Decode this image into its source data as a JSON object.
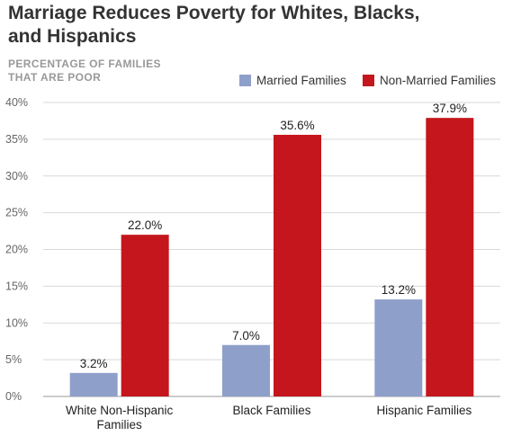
{
  "chart_data": {
    "type": "bar",
    "title_lines": [
      "Marriage Reduces Poverty for Whites, Blacks,",
      "and Hispanics"
    ],
    "ylabel_lines": [
      "PERCENTAGE OF FAMILIES",
      "THAT ARE POOR"
    ],
    "categories": [
      [
        "White Non-Hispanic",
        "Families"
      ],
      [
        "Black Families"
      ],
      [
        "Hispanic Families"
      ]
    ],
    "series": [
      {
        "name": "Married Families",
        "color": "#8e9fca",
        "values": [
          3.2,
          7.0,
          13.2
        ],
        "labels": [
          "3.2%",
          "7.0%",
          "13.2%"
        ]
      },
      {
        "name": "Non-Married Families",
        "color": "#c4161c",
        "values": [
          22.0,
          35.6,
          37.9
        ],
        "labels": [
          "22.0%",
          "35.6%",
          "37.9%"
        ]
      }
    ],
    "ylim": [
      0,
      40
    ],
    "yticks": [
      0,
      5,
      10,
      15,
      20,
      25,
      30,
      35,
      40
    ],
    "ytick_labels": [
      "0%",
      "5%",
      "10%",
      "15%",
      "20%",
      "25%",
      "30%",
      "35%",
      "40%"
    ],
    "grid": true,
    "legend_position": "top-right"
  }
}
